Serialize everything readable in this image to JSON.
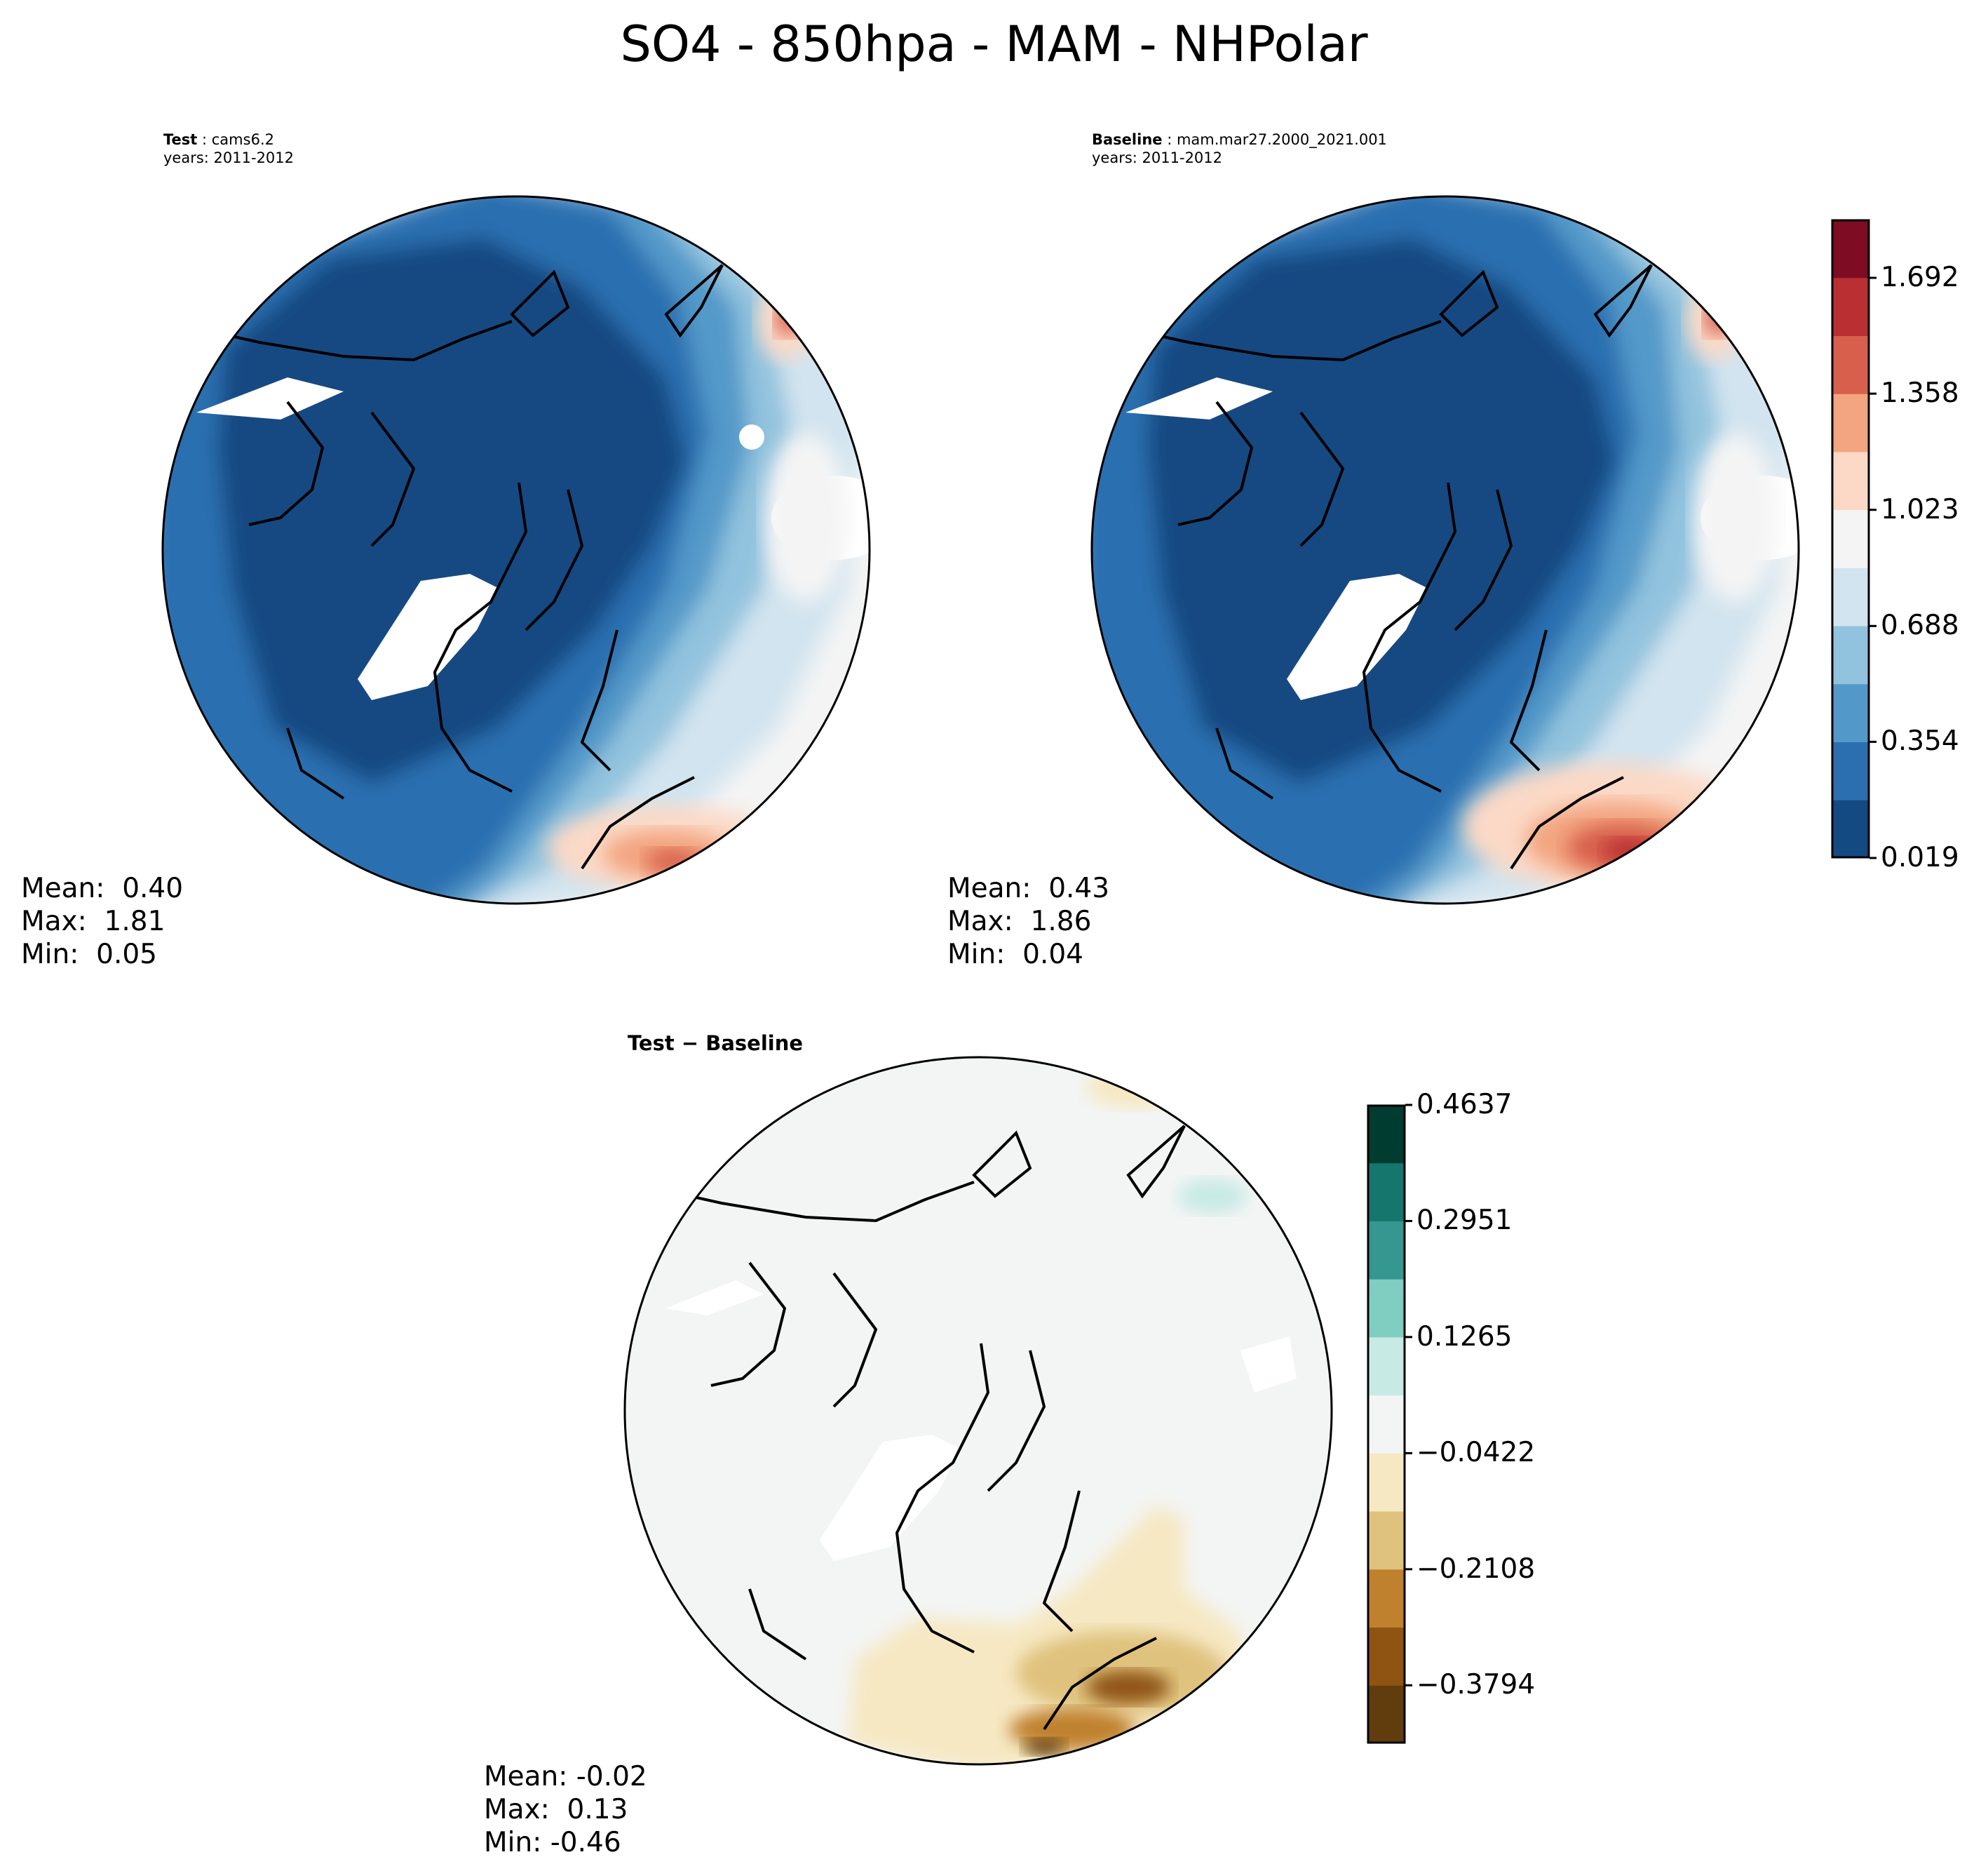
{
  "figure": {
    "title": "SO4 - 850hpa - MAM - NHPolar"
  },
  "panels": {
    "test": {
      "label_bold": "Test",
      "case": "cams6.2",
      "years": "years: 2011-2012",
      "stats": {
        "mean": "Mean:  0.40",
        "max": "Max:  1.81",
        "min": "Min:  0.05"
      }
    },
    "baseline": {
      "label_bold": "Baseline",
      "case": "mam.mar27.2000_2021.001",
      "years": "years: 2011-2012",
      "stats": {
        "mean": "Mean:  0.43",
        "max": "Max:  1.86",
        "min": "Min:  0.04"
      }
    },
    "difference": {
      "title_bold": "Test − Baseline",
      "stats": {
        "mean": "Mean: -0.02",
        "max": "Max:  0.13",
        "min": "Min: -0.46"
      }
    }
  },
  "colorbars": {
    "main": {
      "colormap": "RdBu_r",
      "ticks": [
        "0.019",
        "0.354",
        "0.688",
        "1.023",
        "1.358",
        "1.692"
      ],
      "tick_values": [
        0.019,
        0.354,
        0.688,
        1.023,
        1.358,
        1.692
      ],
      "range": [
        0.019,
        1.86
      ],
      "colors": [
        "#134a82",
        "#2c6fb0",
        "#5299c9",
        "#92c3de",
        "#d2e4ef",
        "#f4f4f4",
        "#fbd9c6",
        "#f3a480",
        "#d75f4c",
        "#b92f32",
        "#7e0c22"
      ]
    },
    "diff": {
      "colormap": "BrBG",
      "ticks": [
        "−0.3794",
        "−0.2108",
        "−0.0422",
        "0.1265",
        "0.2951",
        "0.4637"
      ],
      "tick_values": [
        -0.3794,
        -0.2108,
        -0.0422,
        0.1265,
        0.2951,
        0.4637
      ],
      "range": [
        -0.4637,
        0.4637
      ],
      "colors": [
        "#613c0d",
        "#905412",
        "#bf812d",
        "#dfc27d",
        "#f6e8c3",
        "#f3f5f4",
        "#c7eae5",
        "#80cdc1",
        "#35978f",
        "#14766d",
        "#003c30"
      ]
    }
  }
}
